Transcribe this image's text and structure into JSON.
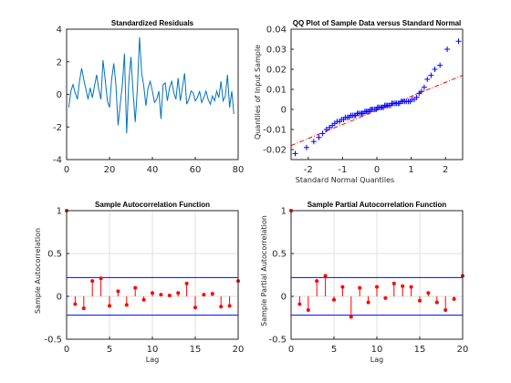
{
  "figure": {
    "background": "#ffffff",
    "axis_color": "#262626",
    "grid_color": "#dfdfdf"
  },
  "chart_data": [
    {
      "id": "residuals",
      "type": "line",
      "title": "Standardized Residuals",
      "xlabel": "",
      "ylabel": "",
      "xlim": [
        0,
        80
      ],
      "ylim": [
        -4,
        4
      ],
      "xticks": [
        "0",
        "20",
        "40",
        "60",
        "80"
      ],
      "yticks": [
        "-4",
        "-2",
        "0",
        "2",
        "4"
      ],
      "xtick_values": [
        0,
        20,
        40,
        60,
        80
      ],
      "ytick_values": [
        -4,
        -2,
        0,
        2,
        4
      ],
      "grid": false,
      "color": "#0072bd",
      "x": [
        1,
        2,
        3,
        4,
        5,
        6,
        7,
        8,
        9,
        10,
        11,
        12,
        13,
        14,
        15,
        16,
        17,
        18,
        19,
        20,
        21,
        22,
        23,
        24,
        25,
        26,
        27,
        28,
        29,
        30,
        31,
        32,
        33,
        34,
        35,
        36,
        37,
        38,
        39,
        40,
        41,
        42,
        43,
        44,
        45,
        46,
        47,
        48,
        49,
        50,
        51,
        52,
        53,
        54,
        55,
        56,
        57,
        58,
        59,
        60,
        61,
        62,
        63,
        64,
        65,
        66,
        67,
        68,
        69,
        70,
        71,
        72,
        73,
        74,
        75,
        76,
        77,
        78
      ],
      "y": [
        -0.8,
        0.2,
        0.6,
        0.1,
        -0.3,
        0.8,
        1.6,
        0.9,
        0.3,
        -0.3,
        0.4,
        -0.2,
        0.5,
        1.2,
        0.3,
        -0.3,
        2.1,
        0.9,
        -0.4,
        -0.8,
        0.9,
        1.9,
        0.6,
        -1.9,
        -0.6,
        0.6,
        2.5,
        -2.4,
        0.7,
        2.3,
        0.1,
        -1.7,
        0.4,
        3.5,
        1.3,
        0.5,
        -0.7,
        0.4,
        0.8,
        0.2,
        -0.5,
        -0.3,
        0.2,
        -1.5,
        0.6,
        0.7,
        -0.4,
        0.4,
        0.8,
        0.1,
        -0.3,
        1.0,
        -0.4,
        0.4,
        1.3,
        -0.6,
        -0.3,
        0.2,
        0.1,
        -0.4,
        -0.2,
        0.2,
        -0.5,
        -0.2,
        0.2,
        -0.3,
        -0.6,
        -0.1,
        -0.4,
        0.2,
        -0.2,
        0.8,
        -0.4,
        -0.1,
        1.2,
        -0.8,
        0.2,
        -1.2
      ]
    },
    {
      "id": "qqplot",
      "type": "scatter",
      "title": "QQ Plot of Sample Data versus Standard Normal",
      "xlabel": "Standard Normal Quantiles",
      "ylabel": "Quantiles of Input Sample",
      "xlim": [
        -2.5,
        2.5
      ],
      "ylim": [
        -0.025,
        0.04
      ],
      "xticks": [
        "-2",
        "-1",
        "0",
        "1",
        "2"
      ],
      "yticks": [
        "-0.02",
        "-0.01",
        "0",
        "0.01",
        "0.02",
        "0.03",
        "0.04"
      ],
      "xtick_values": [
        -2,
        -1,
        0,
        1,
        2
      ],
      "ytick_values": [
        -0.02,
        -0.01,
        0,
        0.01,
        0.02,
        0.03,
        0.04
      ],
      "grid": false,
      "marker": "+",
      "color": "#0000ff",
      "fit_line": {
        "x": [
          -2.5,
          2.5
        ],
        "y": [
          -0.018,
          0.017
        ],
        "color": "#ff0000",
        "style": "dash-dot"
      },
      "x": [
        -2.38,
        -2.05,
        -1.84,
        -1.69,
        -1.58,
        -1.47,
        -1.38,
        -1.3,
        -1.23,
        -1.16,
        -1.09,
        -1.03,
        -0.97,
        -0.92,
        -0.86,
        -0.81,
        -0.76,
        -0.71,
        -0.66,
        -0.62,
        -0.57,
        -0.53,
        -0.48,
        -0.44,
        -0.4,
        -0.35,
        -0.31,
        -0.27,
        -0.23,
        -0.19,
        -0.15,
        -0.11,
        -0.06,
        -0.02,
        0.02,
        0.06,
        0.11,
        0.15,
        0.19,
        0.23,
        0.27,
        0.31,
        0.35,
        0.4,
        0.44,
        0.48,
        0.53,
        0.57,
        0.62,
        0.66,
        0.71,
        0.76,
        0.81,
        0.86,
        0.92,
        0.97,
        1.03,
        1.09,
        1.16,
        1.23,
        1.3,
        1.38,
        1.47,
        1.58,
        1.69,
        1.84,
        2.05,
        2.38
      ],
      "y": [
        -0.022,
        -0.019,
        -0.016,
        -0.014,
        -0.012,
        -0.01,
        -0.009,
        -0.008,
        -0.007,
        -0.006,
        -0.006,
        -0.005,
        -0.005,
        -0.004,
        -0.004,
        -0.004,
        -0.003,
        -0.003,
        -0.003,
        -0.003,
        -0.002,
        -0.002,
        -0.002,
        -0.002,
        -0.002,
        -0.001,
        -0.001,
        -0.001,
        -0.001,
        0.0,
        0.0,
        0.0,
        0.0,
        0.0,
        0.001,
        0.001,
        0.001,
        0.001,
        0.001,
        0.002,
        0.002,
        0.002,
        0.002,
        0.002,
        0.003,
        0.003,
        0.003,
        0.003,
        0.003,
        0.003,
        0.004,
        0.004,
        0.004,
        0.004,
        0.004,
        0.004,
        0.005,
        0.005,
        0.006,
        0.008,
        0.009,
        0.011,
        0.015,
        0.017,
        0.02,
        0.022,
        0.03,
        0.034
      ]
    },
    {
      "id": "acf",
      "type": "stem",
      "title": "Sample Autocorrelation Function",
      "xlabel": "Lag",
      "ylabel": "Sample Autocorrelation",
      "xlim": [
        0,
        20
      ],
      "ylim": [
        -0.5,
        1
      ],
      "xticks": [
        "0",
        "5",
        "10",
        "15",
        "20"
      ],
      "yticks": [
        "-0.5",
        "0",
        "0.5",
        "1"
      ],
      "xtick_values": [
        0,
        5,
        10,
        15,
        20
      ],
      "ytick_values": [
        -0.5,
        0,
        0.5,
        1
      ],
      "grid": true,
      "color": "#ff0000",
      "bounds": [
        0.22,
        -0.22
      ],
      "bounds_color": "#0000ff",
      "x": [
        0,
        1,
        2,
        3,
        4,
        5,
        6,
        7,
        8,
        9,
        10,
        11,
        12,
        13,
        14,
        15,
        16,
        17,
        18,
        19,
        20
      ],
      "y": [
        1,
        -0.09,
        -0.14,
        0.18,
        0.21,
        -0.11,
        0.06,
        -0.1,
        0.1,
        -0.04,
        0.04,
        0.02,
        0.01,
        0.04,
        0.15,
        -0.13,
        0.02,
        0.03,
        -0.12,
        -0.11,
        0.18
      ]
    },
    {
      "id": "pacf",
      "type": "stem",
      "title": "Sample Partial Autocorrelation Function",
      "xlabel": "Lag",
      "ylabel": "Sample Partial Autocorrelation",
      "xlim": [
        0,
        20
      ],
      "ylim": [
        -0.5,
        1
      ],
      "xticks": [
        "0",
        "5",
        "10",
        "15",
        "20"
      ],
      "yticks": [
        "-0.5",
        "0",
        "0.5",
        "1"
      ],
      "xtick_values": [
        0,
        5,
        10,
        15,
        20
      ],
      "ytick_values": [
        -0.5,
        0,
        0.5,
        1
      ],
      "grid": true,
      "color": "#ff0000",
      "bounds": [
        0.22,
        -0.22
      ],
      "bounds_color": "#0000ff",
      "x": [
        0,
        1,
        2,
        3,
        4,
        5,
        6,
        7,
        8,
        9,
        10,
        11,
        12,
        13,
        14,
        15,
        16,
        17,
        18,
        19,
        20
      ],
      "y": [
        1,
        -0.09,
        -0.16,
        0.18,
        0.24,
        -0.04,
        0.11,
        -0.24,
        0.1,
        -0.07,
        0.11,
        -0.02,
        0.15,
        0.12,
        0.11,
        -0.05,
        0.04,
        -0.07,
        -0.16,
        -0.03,
        0.24
      ]
    }
  ]
}
